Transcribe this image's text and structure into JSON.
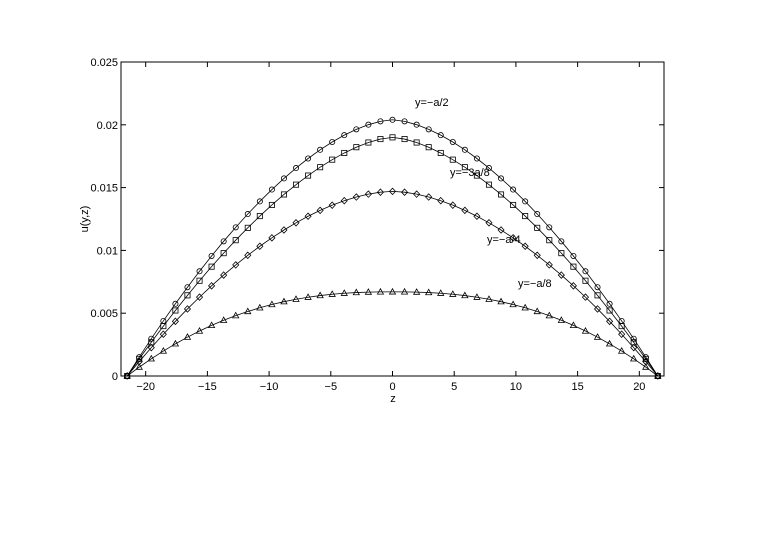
{
  "chart_data": {
    "type": "line",
    "title": "",
    "xlabel": "z",
    "ylabel": "u(y,z)",
    "xlim": [
      -22,
      22
    ],
    "ylim": [
      0,
      0.025
    ],
    "xticks": [
      -20,
      -15,
      -10,
      -5,
      0,
      5,
      10,
      15,
      20
    ],
    "xtick_labels": [
      "−20",
      "−15",
      "−10",
      "−5",
      "0",
      "5",
      "10",
      "15",
      "20"
    ],
    "yticks": [
      0,
      0.005,
      0.01,
      0.015,
      0.02,
      0.025
    ],
    "ytick_labels": [
      "0",
      "0.005",
      "0.01",
      "0.015",
      "0.02",
      "0.025"
    ],
    "grid": false,
    "z_range": [
      -21.5,
      21.5
    ],
    "points_per_curve": 44,
    "series": [
      {
        "name": "y=−a/2",
        "marker": "circle",
        "peak": 0.0204,
        "exponent": 1.65
      },
      {
        "name": "y=−3a/8",
        "marker": "square",
        "peak": 0.019,
        "exponent": 1.6
      },
      {
        "name": "y=−a/4",
        "marker": "diamond",
        "peak": 0.0147,
        "exponent": 1.75
      },
      {
        "name": "y=−a/8",
        "marker": "triangle",
        "peak": 0.0067,
        "exponent": 2.4
      }
    ]
  }
}
